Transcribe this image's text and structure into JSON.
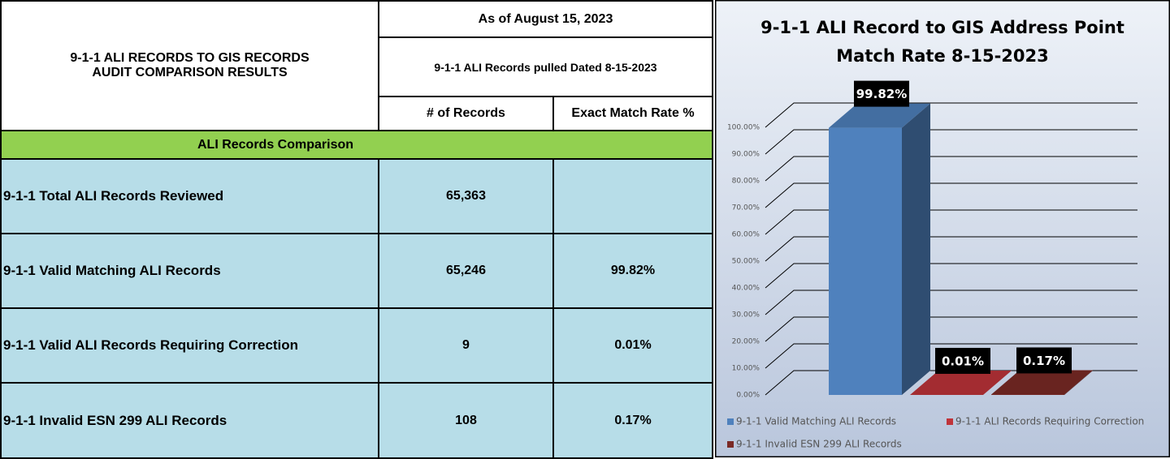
{
  "table": {
    "title": [
      "9-1-1 ALI RECORDS TO GIS RECORDS",
      "AUDIT COMPARISON RESULTS"
    ],
    "as_of": "As of August 15, 2023",
    "pulled": "9-1-1 ALI Records pulled Dated 8-15-2023",
    "columns": [
      "# of Records",
      "Exact Match Rate %"
    ],
    "section": "ALI Records Comparison",
    "rows": [
      [
        "9-1-1 Total ALI Records Reviewed",
        "65,363"
      ],
      [
        "9-1-1 Valid Matching ALI Records",
        "65,246",
        "99.82%"
      ],
      [
        "9-1-1 Valid ALI Records Requiring Correction",
        "9",
        "0.01%"
      ],
      [
        "9-1-1 Invalid ESN 299 ALI Records",
        "108",
        "0.17%"
      ]
    ]
  },
  "chart_data": {
    "type": "bar3d",
    "title": [
      "9-1-1 ALI Record to GIS Address Point",
      "Match Rate 8-15-2023"
    ],
    "categories": [
      null
    ],
    "series": [
      {
        "name": "9-1-1 Valid Matching ALI Records",
        "color": "#4f81bd",
        "values": [
          99.82
        ],
        "value_labels": [
          "99.82%"
        ]
      },
      {
        "name": "9-1-1  ALI Records Requiring Correction",
        "color": "#c0343a",
        "values": [
          0.01
        ],
        "value_labels": [
          "0.01%"
        ]
      },
      {
        "name": "9-1-1 Invalid ESN 299 ALI Records",
        "color": "#7b2a26",
        "values": [
          0.17
        ],
        "value_labels": [
          "0.17%"
        ]
      }
    ],
    "ylim": [
      0,
      100
    ],
    "yticks": [
      {
        "value": 0,
        "label": "0.00%"
      },
      {
        "value": 10,
        "label": "10.00%"
      },
      {
        "value": 20,
        "label": "20.00%"
      },
      {
        "value": 30,
        "label": "30.00%"
      },
      {
        "value": 40,
        "label": "40.00%"
      },
      {
        "value": 50,
        "label": "50.00%"
      },
      {
        "value": 60,
        "label": "60.00%"
      },
      {
        "value": 70,
        "label": "70.00%"
      },
      {
        "value": 80,
        "label": "80.00%"
      },
      {
        "value": 90,
        "label": "90.00%"
      },
      {
        "value": 100,
        "label": "100.00%"
      }
    ],
    "grid": true
  }
}
